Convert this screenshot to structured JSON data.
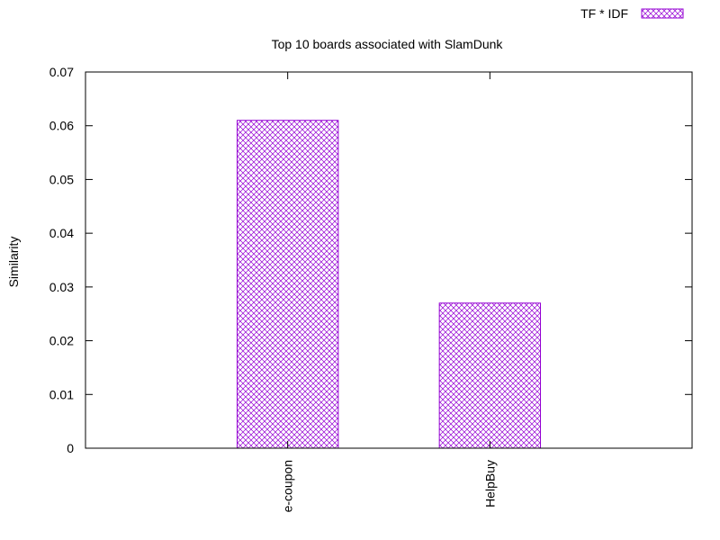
{
  "chart_data": {
    "type": "bar",
    "title": "Top 10 boards associated with SlamDunk",
    "xlabel": "",
    "ylabel": "Similarity",
    "ylim": [
      0,
      0.07
    ],
    "yticks": [
      "0",
      "0.01",
      "0.02",
      "0.03",
      "0.04",
      "0.05",
      "0.06",
      "0.07"
    ],
    "categories": [
      "e-coupon",
      "HelpBuy"
    ],
    "series": [
      {
        "name": "TF * IDF",
        "values": [
          0.061,
          0.027
        ]
      }
    ],
    "legend_position": "top-right",
    "grid": false,
    "bar_color": "#9400d3",
    "bar_fill": "crosshatch"
  }
}
